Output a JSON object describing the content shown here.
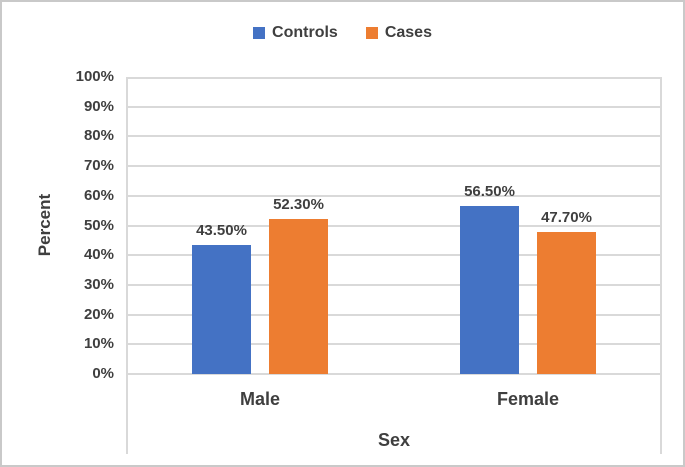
{
  "palette": {
    "controls_blue": "#4472C4",
    "cases_orange": "#ED7D31",
    "gridline_gray": "#D9D9D9",
    "text_gray": "#3F3F3F",
    "outer_border_gray": "#C9C9C9",
    "background": "#FFFFFF"
  },
  "chart_data": {
    "type": "bar",
    "title": "",
    "categories": [
      "Male",
      "Female"
    ],
    "series": [
      {
        "name": "Controls",
        "color": "#4472C4",
        "values": [
          43.5,
          56.5
        ],
        "data_labels": [
          "43.50%",
          "56.50%"
        ]
      },
      {
        "name": "Cases",
        "color": "#ED7D31",
        "values": [
          52.3,
          47.7
        ],
        "data_labels": [
          "52.30%",
          "47.70%"
        ]
      }
    ],
    "xlabel": "Sex",
    "ylabel": "Percent",
    "ylim": [
      0,
      100
    ],
    "ytick_step": 10,
    "ytick_labels": [
      "0%",
      "10%",
      "20%",
      "30%",
      "40%",
      "50%",
      "60%",
      "70%",
      "80%",
      "90%",
      "100%"
    ],
    "grid": true,
    "legend_position": "top"
  }
}
